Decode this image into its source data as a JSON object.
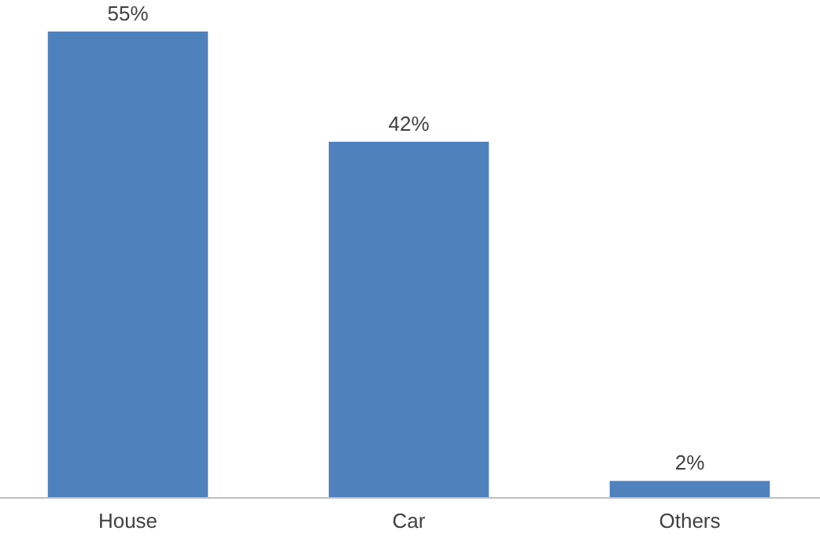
{
  "chart_data": {
    "type": "bar",
    "categories": [
      "House",
      "Car",
      "Others"
    ],
    "values": [
      55,
      42,
      2
    ],
    "value_labels": [
      "55%",
      "42%",
      "2%"
    ],
    "color": "#4f81bd"
  }
}
